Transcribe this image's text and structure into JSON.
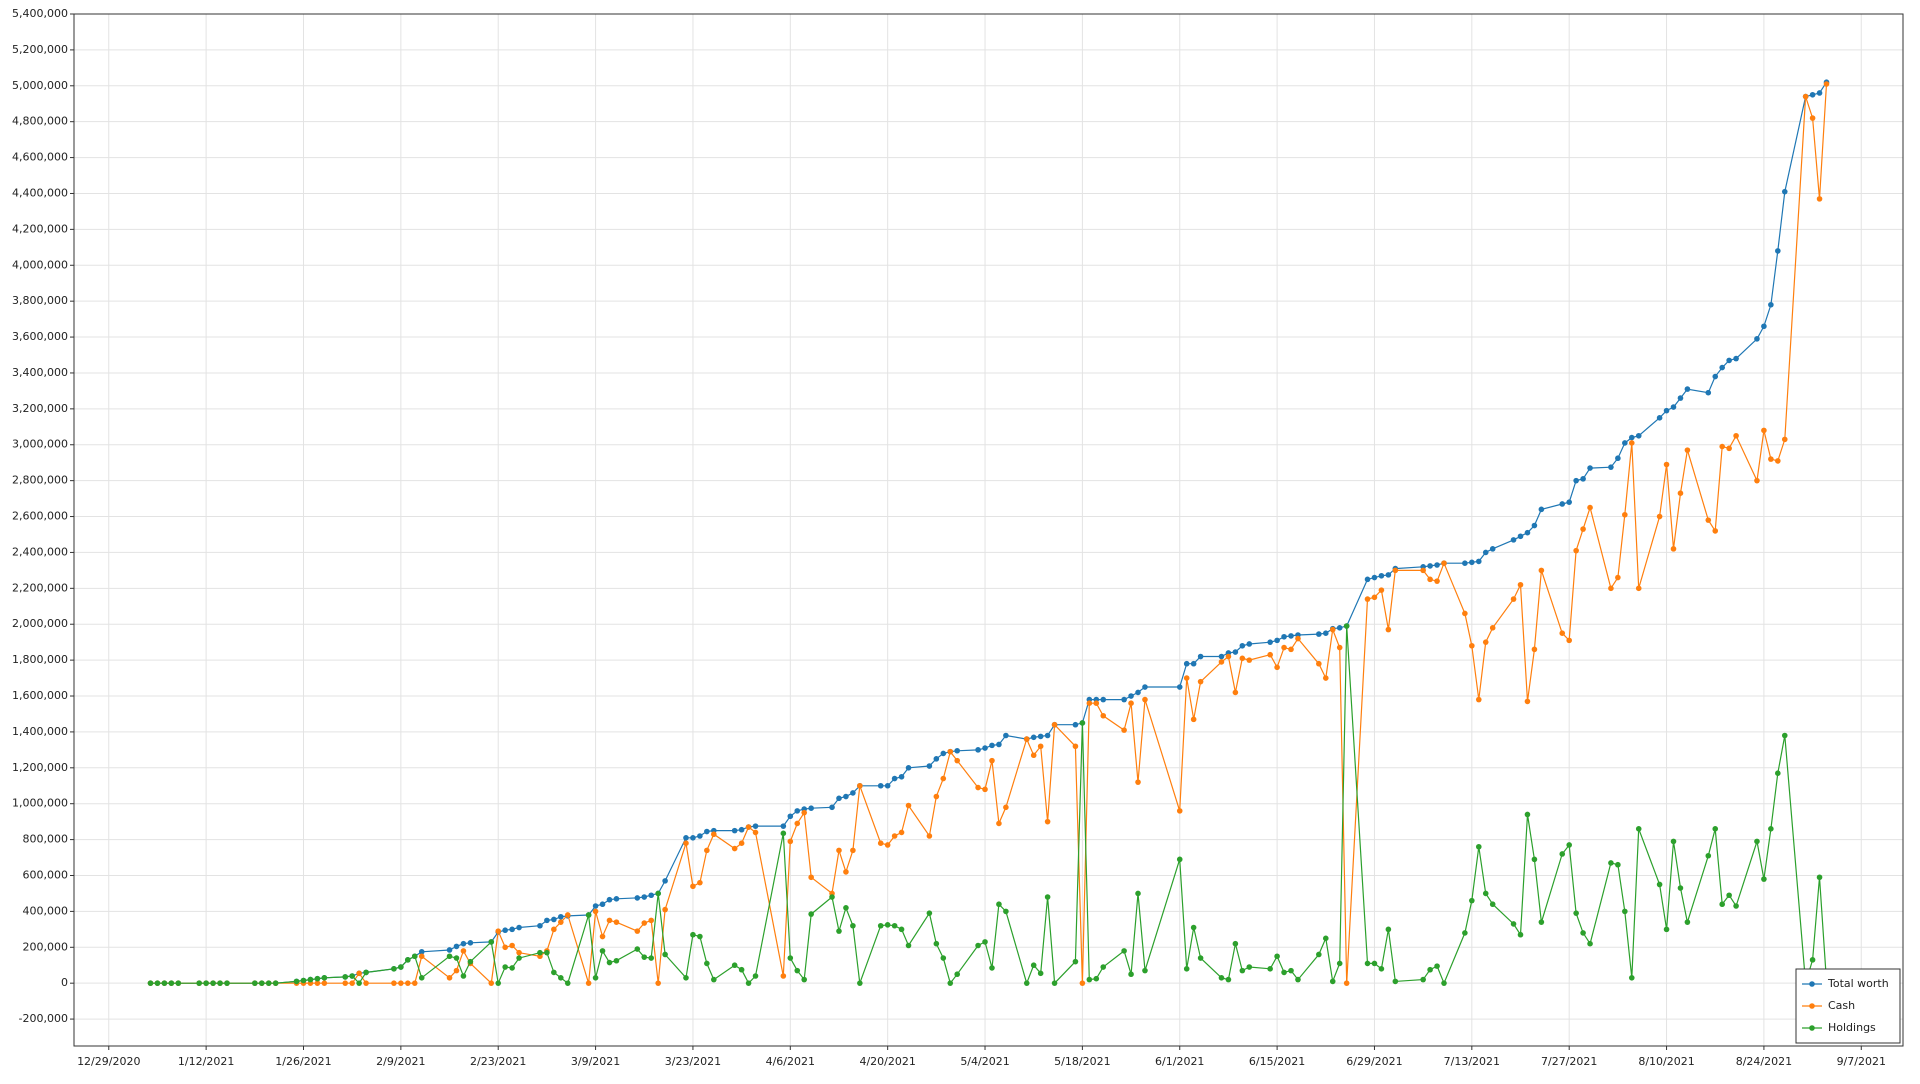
{
  "chart_data": {
    "type": "line",
    "x": [
      "1/4/2021",
      "1/5/2021",
      "1/6/2021",
      "1/7/2021",
      "1/8/2021",
      "1/11/2021",
      "1/12/2021",
      "1/13/2021",
      "1/14/2021",
      "1/15/2021",
      "1/19/2021",
      "1/20/2021",
      "1/21/2021",
      "1/22/2021",
      "1/25/2021",
      "1/26/2021",
      "1/27/2021",
      "1/28/2021",
      "1/29/2021",
      "2/1/2021",
      "2/2/2021",
      "2/3/2021",
      "2/4/2021",
      "2/8/2021",
      "2/9/2021",
      "2/10/2021",
      "2/11/2021",
      "2/12/2021",
      "2/16/2021",
      "2/17/2021",
      "2/18/2021",
      "2/19/2021",
      "2/22/2021",
      "2/23/2021",
      "2/24/2021",
      "2/25/2021",
      "2/26/2021",
      "3/1/2021",
      "3/2/2021",
      "3/3/2021",
      "3/4/2021",
      "3/5/2021",
      "3/8/2021",
      "3/9/2021",
      "3/10/2021",
      "3/11/2021",
      "3/12/2021",
      "3/15/2021",
      "3/16/2021",
      "3/17/2021",
      "3/18/2021",
      "3/19/2021",
      "3/22/2021",
      "3/23/2021",
      "3/24/2021",
      "3/25/2021",
      "3/26/2021",
      "3/29/2021",
      "3/30/2021",
      "3/31/2021",
      "4/1/2021",
      "4/5/2021",
      "4/6/2021",
      "4/7/2021",
      "4/8/2021",
      "4/9/2021",
      "4/12/2021",
      "4/13/2021",
      "4/14/2021",
      "4/15/2021",
      "4/16/2021",
      "4/19/2021",
      "4/20/2021",
      "4/21/2021",
      "4/22/2021",
      "4/23/2021",
      "4/26/2021",
      "4/27/2021",
      "4/28/2021",
      "4/29/2021",
      "4/30/2021",
      "5/3/2021",
      "5/4/2021",
      "5/5/2021",
      "5/6/2021",
      "5/7/2021",
      "5/10/2021",
      "5/11/2021",
      "5/12/2021",
      "5/13/2021",
      "5/14/2021",
      "5/17/2021",
      "5/18/2021",
      "5/19/2021",
      "5/20/2021",
      "5/21/2021",
      "5/24/2021",
      "5/25/2021",
      "5/26/2021",
      "5/27/2021",
      "6/1/2021",
      "6/2/2021",
      "6/3/2021",
      "6/4/2021",
      "6/7/2021",
      "6/8/2021",
      "6/9/2021",
      "6/10/2021",
      "6/11/2021",
      "6/14/2021",
      "6/15/2021",
      "6/16/2021",
      "6/17/2021",
      "6/18/2021",
      "6/21/2021",
      "6/22/2021",
      "6/23/2021",
      "6/24/2021",
      "6/25/2021",
      "6/28/2021",
      "6/29/2021",
      "6/30/2021",
      "7/1/2021",
      "7/2/2021",
      "7/6/2021",
      "7/7/2021",
      "7/8/2021",
      "7/9/2021",
      "7/12/2021",
      "7/13/2021",
      "7/14/2021",
      "7/15/2021",
      "7/16/2021",
      "7/19/2021",
      "7/20/2021",
      "7/21/2021",
      "7/22/2021",
      "7/23/2021",
      "7/26/2021",
      "7/27/2021",
      "7/28/2021",
      "7/29/2021",
      "7/30/2021",
      "8/2/2021",
      "8/3/2021",
      "8/4/2021",
      "8/5/2021",
      "8/6/2021",
      "8/9/2021",
      "8/10/2021",
      "8/11/2021",
      "8/12/2021",
      "8/13/2021",
      "8/16/2021",
      "8/17/2021",
      "8/18/2021",
      "8/19/2021",
      "8/20/2021",
      "8/23/2021",
      "8/24/2021",
      "8/25/2021",
      "8/26/2021",
      "8/27/2021",
      "8/30/2021",
      "8/31/2021",
      "9/1/2021",
      "9/2/2021"
    ],
    "series": [
      {
        "name": "Total worth",
        "color": "#1f77b4",
        "values": [
          0,
          0,
          0,
          0,
          0,
          0,
          0,
          0,
          0,
          0,
          0,
          0,
          0,
          0,
          10000,
          15000,
          20000,
          25000,
          30000,
          35000,
          40000,
          55000,
          60000,
          80000,
          90000,
          130000,
          150000,
          175000,
          185000,
          205000,
          220000,
          225000,
          230000,
          285000,
          295000,
          300000,
          310000,
          320000,
          350000,
          355000,
          370000,
          375000,
          380000,
          430000,
          440000,
          465000,
          470000,
          475000,
          480000,
          490000,
          500000,
          570000,
          810000,
          810000,
          820000,
          845000,
          850000,
          850000,
          855000,
          870000,
          875000,
          875000,
          930000,
          960000,
          970000,
          975000,
          980000,
          1030000,
          1040000,
          1060000,
          1100000,
          1100000,
          1100000,
          1140000,
          1150000,
          1200000,
          1210000,
          1250000,
          1280000,
          1290000,
          1295000,
          1300000,
          1310000,
          1325000,
          1330000,
          1380000,
          1360000,
          1370000,
          1375000,
          1380000,
          1440000,
          1440000,
          1450000,
          1580000,
          1580000,
          1580000,
          1580000,
          1600000,
          1620000,
          1650000,
          1650000,
          1780000,
          1780000,
          1820000,
          1820000,
          1840000,
          1845000,
          1880000,
          1890000,
          1900000,
          1910000,
          1930000,
          1935000,
          1940000,
          1945000,
          1950000,
          1975000,
          1980000,
          1990000,
          2250000,
          2260000,
          2270000,
          2275000,
          2310000,
          2320000,
          2325000,
          2330000,
          2340000,
          2340000,
          2345000,
          2350000,
          2400000,
          2420000,
          2470000,
          2490000,
          2510000,
          2550000,
          2640000,
          2670000,
          2680000,
          2800000,
          2810000,
          2870000,
          2875000,
          2925000,
          3010000,
          3040000,
          3050000,
          3150000,
          3190000,
          3210000,
          3260000,
          3310000,
          3290000,
          3380000,
          3430000,
          3470000,
          3480000,
          3590000,
          3660000,
          3780000,
          4080000,
          4410000,
          4940000,
          4950000,
          4960000,
          5020000
        ]
      },
      {
        "name": "Cash",
        "color": "#ff7f0e",
        "values": [
          0,
          0,
          0,
          0,
          0,
          0,
          0,
          0,
          0,
          0,
          0,
          0,
          0,
          0,
          0,
          0,
          0,
          0,
          0,
          0,
          0,
          55000,
          0,
          0,
          0,
          0,
          0,
          150000,
          30000,
          70000,
          180000,
          110000,
          0,
          290000,
          200000,
          210000,
          170000,
          150000,
          180000,
          300000,
          340000,
          380000,
          0,
          400000,
          260000,
          350000,
          340000,
          290000,
          335000,
          350000,
          0,
          410000,
          780000,
          540000,
          560000,
          740000,
          830000,
          750000,
          780000,
          870000,
          840000,
          40000,
          790000,
          890000,
          950000,
          590000,
          500000,
          740000,
          620000,
          740000,
          1100000,
          780000,
          770000,
          820000,
          840000,
          990000,
          820000,
          1040000,
          1140000,
          1290000,
          1240000,
          1090000,
          1080000,
          1240000,
          890000,
          980000,
          1360000,
          1270000,
          1320000,
          900000,
          1440000,
          1320000,
          0,
          1560000,
          1560000,
          1490000,
          1410000,
          1560000,
          1120000,
          1580000,
          960000,
          1700000,
          1470000,
          1680000,
          1790000,
          1820000,
          1620000,
          1810000,
          1800000,
          1830000,
          1760000,
          1870000,
          1860000,
          1920000,
          1780000,
          1700000,
          1970000,
          1870000,
          0,
          2140000,
          2150000,
          2190000,
          1970000,
          2300000,
          2300000,
          2250000,
          2240000,
          2340000,
          2060000,
          1880000,
          1580000,
          1900000,
          1980000,
          2140000,
          2220000,
          1570000,
          1860000,
          2300000,
          1950000,
          1910000,
          2410000,
          2530000,
          2650000,
          2200000,
          2260000,
          2610000,
          3010000,
          2200000,
          2600000,
          2890000,
          2420000,
          2730000,
          2970000,
          2580000,
          2520000,
          2990000,
          2980000,
          3050000,
          2800000,
          3080000,
          2920000,
          2910000,
          3030000,
          4940000,
          4820000,
          4370000,
          5010000
        ]
      },
      {
        "name": "Holdings",
        "color": "#2ca02c",
        "values": [
          0,
          0,
          0,
          0,
          0,
          0,
          0,
          0,
          0,
          0,
          0,
          0,
          0,
          0,
          10000,
          15000,
          20000,
          25000,
          30000,
          35000,
          40000,
          0,
          60000,
          80000,
          90000,
          130000,
          150000,
          30000,
          150000,
          140000,
          40000,
          120000,
          230000,
          0,
          90000,
          85000,
          140000,
          170000,
          170000,
          60000,
          30000,
          0,
          380000,
          30000,
          180000,
          115000,
          125000,
          190000,
          145000,
          140000,
          500000,
          160000,
          30000,
          270000,
          260000,
          110000,
          20000,
          100000,
          75000,
          0,
          40000,
          835000,
          140000,
          70000,
          20000,
          385000,
          480000,
          290000,
          420000,
          320000,
          0,
          320000,
          325000,
          320000,
          300000,
          210000,
          390000,
          220000,
          140000,
          0,
          50000,
          210000,
          230000,
          85000,
          440000,
          400000,
          0,
          100000,
          55000,
          480000,
          0,
          120000,
          1450000,
          20000,
          25000,
          90000,
          180000,
          50000,
          500000,
          70000,
          690000,
          80000,
          310000,
          140000,
          30000,
          20000,
          220000,
          70000,
          90000,
          80000,
          150000,
          60000,
          70000,
          20000,
          160000,
          250000,
          10000,
          110000,
          1990000,
          110000,
          110000,
          80000,
          300000,
          10000,
          20000,
          75000,
          95000,
          0,
          280000,
          460000,
          760000,
          500000,
          440000,
          330000,
          270000,
          940000,
          690000,
          340000,
          720000,
          770000,
          390000,
          280000,
          220000,
          670000,
          660000,
          400000,
          30000,
          860000,
          550000,
          300000,
          790000,
          530000,
          340000,
          710000,
          860000,
          440000,
          490000,
          430000,
          790000,
          580000,
          860000,
          1170000,
          1380000,
          0,
          130000,
          590000,
          10000
        ]
      }
    ],
    "xlim": [
      "12/24/2020",
      "9/13/2021"
    ],
    "xticks": [
      "12/29/2020",
      "1/12/2021",
      "1/26/2021",
      "2/9/2021",
      "2/23/2021",
      "3/9/2021",
      "3/23/2021",
      "4/6/2021",
      "4/20/2021",
      "5/4/2021",
      "5/18/2021",
      "6/1/2021",
      "6/15/2021",
      "6/29/2021",
      "7/13/2021",
      "7/27/2021",
      "8/10/2021",
      "8/24/2021",
      "9/7/2021"
    ],
    "ylim": [
      -350000,
      5400000
    ],
    "yticks": [
      {
        "value": -200000,
        "label": "-200,000"
      },
      0,
      {
        "value": 200000,
        "label": "200,000"
      },
      {
        "value": 400000,
        "label": "400,000"
      },
      {
        "value": 600000,
        "label": "600,000"
      },
      {
        "value": 800000,
        "label": "800,000"
      },
      {
        "value": 1000000,
        "label": "1,000,000"
      },
      {
        "value": 1200000,
        "label": "1,200,000"
      },
      {
        "value": 1400000,
        "label": "1,400,000"
      },
      {
        "value": 1600000,
        "label": "1,600,000"
      },
      {
        "value": 1800000,
        "label": "1,800,000"
      },
      {
        "value": 2000000,
        "label": "2,000,000"
      },
      {
        "value": 2200000,
        "label": "2,200,000"
      },
      {
        "value": 2400000,
        "label": "2,400,000"
      },
      {
        "value": 2600000,
        "label": "2,600,000"
      },
      {
        "value": 2800000,
        "label": "2,800,000"
      },
      {
        "value": 3000000,
        "label": "3,000,000"
      },
      {
        "value": 3200000,
        "label": "3,200,000"
      },
      {
        "value": 3400000,
        "label": "3,400,000"
      },
      {
        "value": 3600000,
        "label": "3,600,000"
      },
      {
        "value": 3800000,
        "label": "3,800,000"
      },
      {
        "value": 4000000,
        "label": "4,000,000"
      },
      {
        "value": 4200000,
        "label": "4,200,000"
      },
      {
        "value": 4400000,
        "label": "4,400,000"
      },
      {
        "value": 4600000,
        "label": "4,600,000"
      },
      {
        "value": 4800000,
        "label": "4,800,000"
      },
      {
        "value": 5000000,
        "label": "5,000,000"
      },
      {
        "value": 5200000,
        "label": "5,200,000"
      },
      {
        "value": 5400000,
        "label": "5,400,000"
      }
    ],
    "grid": true,
    "legend": "lower right"
  }
}
